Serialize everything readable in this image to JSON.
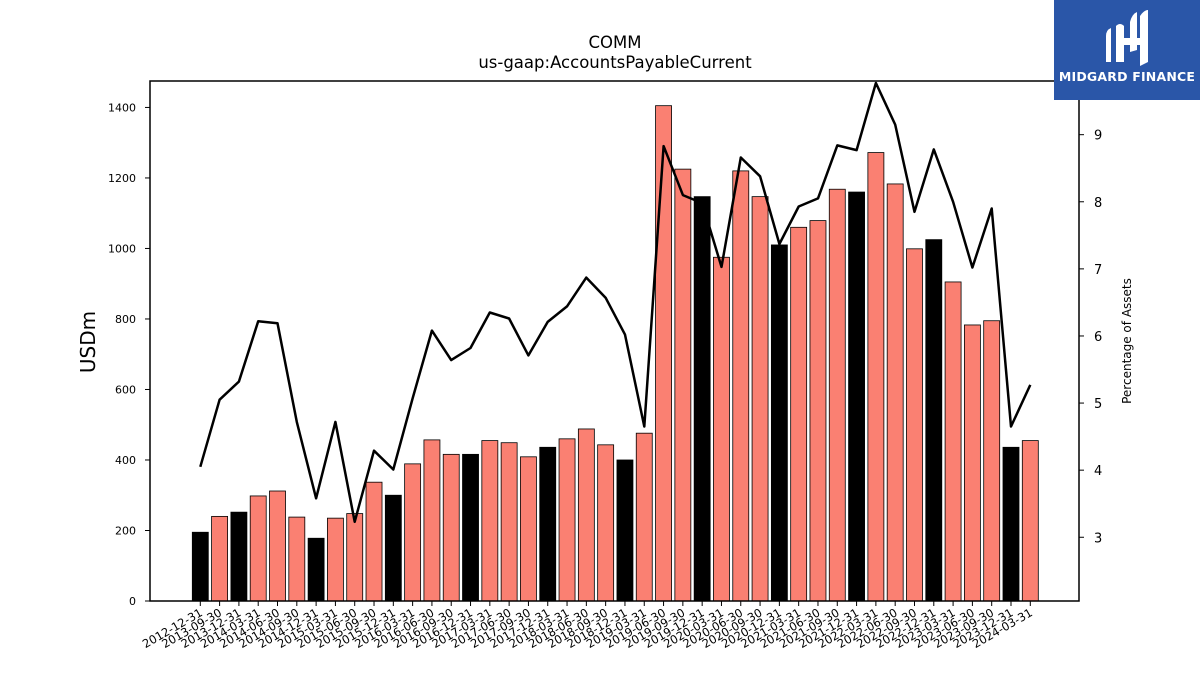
{
  "logo": {
    "text": "MIDGARD FINANCE",
    "background": "#2a56a8",
    "icon": "midgard-m-logo-icon"
  },
  "chart_data": {
    "type": "bar",
    "title": "COMM",
    "subtitle": "us-gaap:AccountsPayableCurrent",
    "ylabel": "USDm",
    "y2label": "Percentage of Assets",
    "ylim": [
      0,
      1475
    ],
    "y2lim": [
      2.05,
      9.8
    ],
    "yticks": [
      0,
      200,
      400,
      600,
      800,
      1000,
      1200,
      1400
    ],
    "y2ticks": [
      3,
      4,
      5,
      6,
      7,
      8,
      9
    ],
    "colors": {
      "q4_bar": "#000000",
      "other_bar": "#fa8072",
      "line": "#000000"
    },
    "categories": [
      "2012-12-31",
      "2013-09-30",
      "2013-12-31",
      "2014-03-31",
      "2014-06-30",
      "2014-09-30",
      "2014-12-31",
      "2015-03-31",
      "2015-06-30",
      "2015-09-30",
      "2015-12-31",
      "2016-03-31",
      "2016-06-30",
      "2016-09-30",
      "2016-12-31",
      "2017-03-31",
      "2017-06-30",
      "2017-09-30",
      "2017-12-31",
      "2018-03-31",
      "2018-06-30",
      "2018-09-30",
      "2018-12-31",
      "2019-03-31",
      "2019-06-30",
      "2019-09-30",
      "2019-12-31",
      "2020-03-31",
      "2020-06-30",
      "2020-09-30",
      "2020-12-31",
      "2021-03-31",
      "2021-06-30",
      "2021-09-30",
      "2021-12-31",
      "2022-03-31",
      "2022-06-30",
      "2022-09-30",
      "2022-12-31",
      "2023-03-31",
      "2023-06-30",
      "2023-09-30",
      "2023-12-31",
      "2024-03-31"
    ],
    "series": [
      {
        "kind": "bar",
        "values": [
          195,
          240,
          252,
          298,
          312,
          238,
          178,
          235,
          248,
          337,
          300,
          389,
          457,
          416,
          416,
          455,
          449,
          409,
          436,
          460,
          488,
          443,
          400,
          476,
          1405,
          1225,
          1147,
          975,
          1220,
          1147,
          1010,
          1060,
          1079,
          1168,
          1160,
          1272,
          1183,
          999,
          1025,
          905,
          783,
          795,
          436,
          455
        ]
      },
      {
        "kind": "line",
        "axis": "right",
        "values": [
          4.05,
          5.05,
          5.32,
          6.22,
          6.19,
          4.72,
          3.58,
          4.72,
          3.23,
          4.29,
          4.01,
          5.07,
          6.08,
          5.64,
          5.82,
          6.35,
          6.26,
          5.71,
          6.21,
          6.44,
          6.87,
          6.57,
          6.02,
          4.65,
          8.83,
          8.1,
          7.98,
          7.03,
          8.66,
          8.38,
          7.37,
          7.93,
          8.05,
          8.84,
          8.77,
          9.77,
          9.15,
          7.85,
          8.78,
          8.0,
          7.02,
          7.9,
          4.65,
          5.27
        ]
      }
    ]
  }
}
